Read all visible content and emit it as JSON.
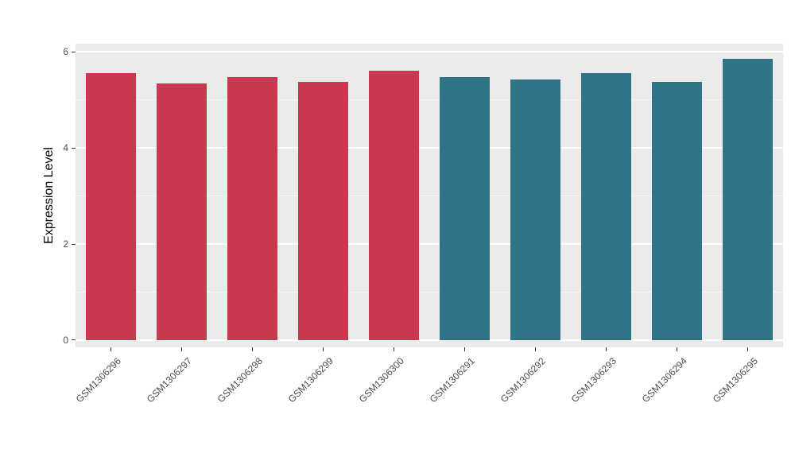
{
  "chart_data": {
    "type": "bar",
    "title": "",
    "xlabel": "",
    "ylabel": "Expression Level",
    "categories": [
      "GSM1306296",
      "GSM1306297",
      "GSM1306298",
      "GSM1306299",
      "GSM1306300",
      "GSM1306291",
      "GSM1306292",
      "GSM1306293",
      "GSM1306294",
      "GSM1306295"
    ],
    "values": [
      5.55,
      5.35,
      5.47,
      5.38,
      5.6,
      5.47,
      5.42,
      5.55,
      5.38,
      5.85
    ],
    "bar_colors": [
      "#C8394F",
      "#C8394F",
      "#C8394F",
      "#C8394F",
      "#C8394F",
      "#2F7387",
      "#2F7387",
      "#2F7387",
      "#2F7387",
      "#2F7387"
    ],
    "palette": {
      "group_red": "#C8394F",
      "group_teal": "#2F7387"
    },
    "ylim": [
      0,
      6
    ],
    "yticks": [
      0,
      2,
      4,
      6
    ],
    "ytick_labels": [
      "0",
      "2",
      "4",
      "6"
    ],
    "grid": "on",
    "legend": "none",
    "panel_bg": "#EBEBEB"
  }
}
